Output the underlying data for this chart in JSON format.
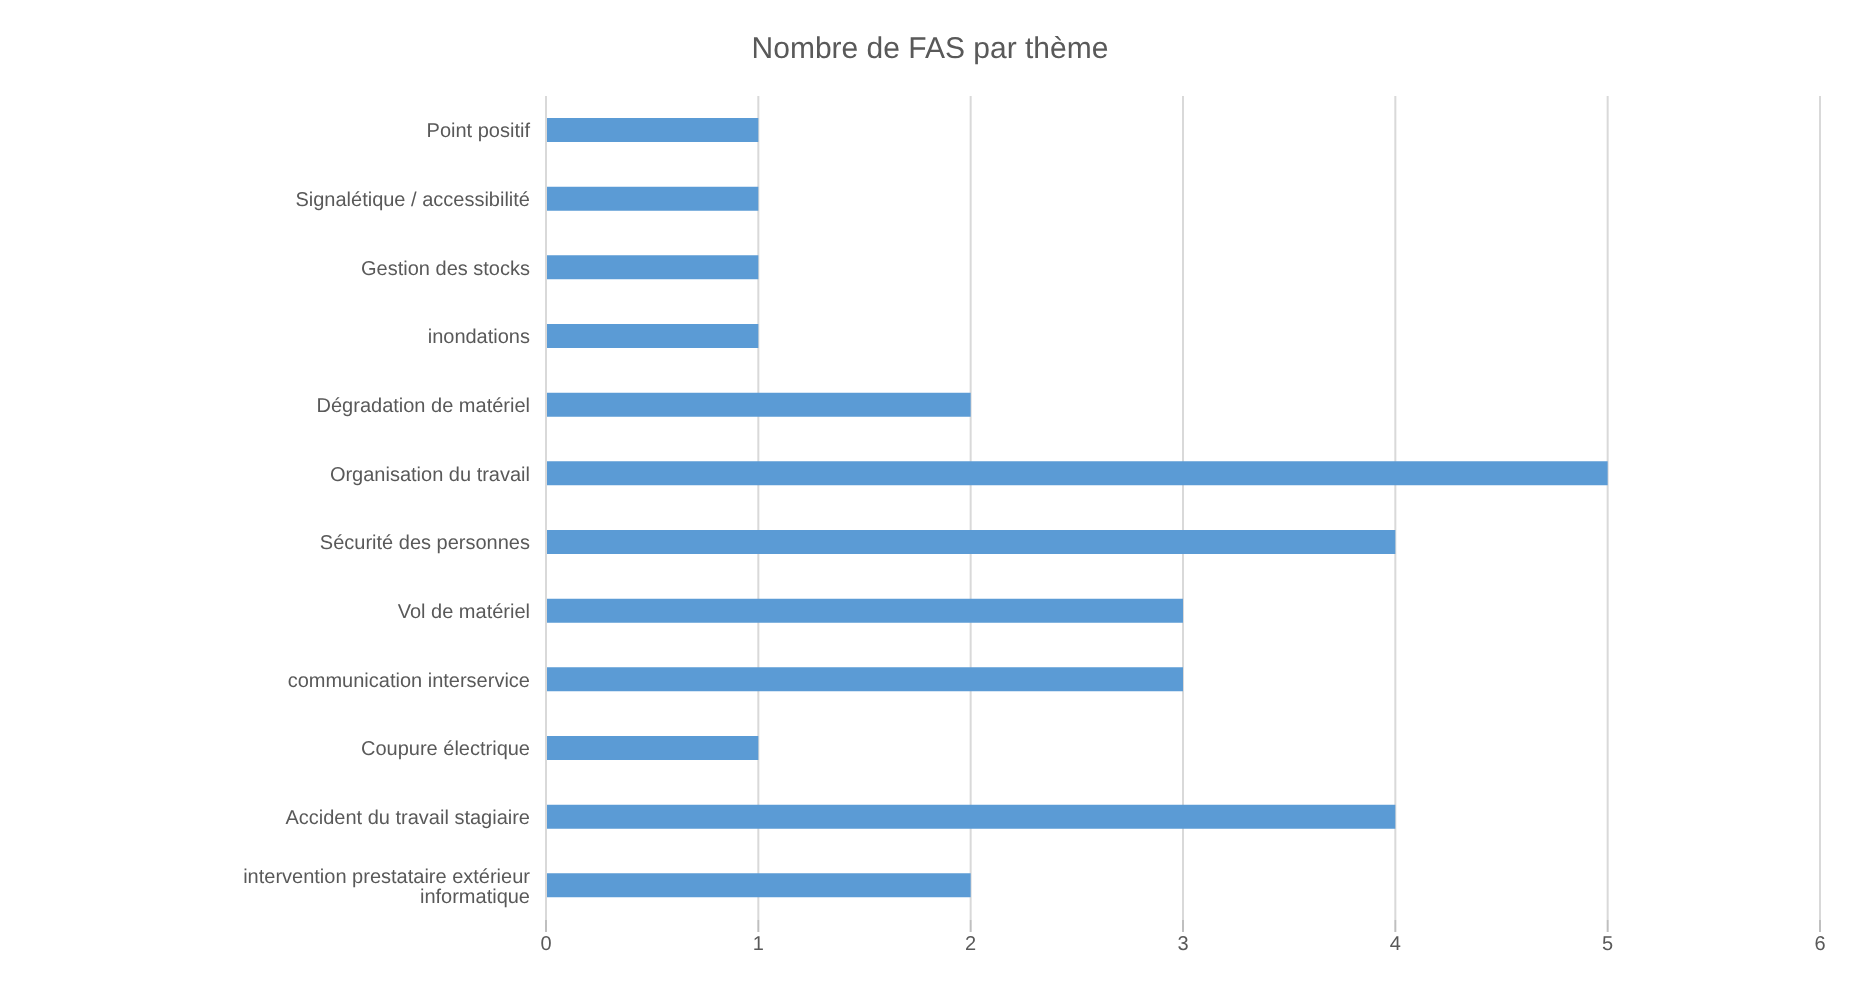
{
  "chart_data": {
    "type": "bar",
    "orientation": "horizontal",
    "title": "Nombre de FAS par thème",
    "categories": [
      "Point positif",
      "Signalétique / accessibilité",
      "Gestion des stocks",
      "inondations",
      "Dégradation de matériel",
      "Organisation du travail",
      "Sécurité des personnes",
      "Vol de matériel",
      "communication interservice",
      "Coupure électrique",
      "Accident du travail stagiaire",
      "intervention prestataire extérieur informatique"
    ],
    "values": [
      1,
      1,
      1,
      1,
      2,
      5,
      4,
      3,
      3,
      1,
      4,
      2
    ],
    "color": "#5b9bd5",
    "xlim": [
      0,
      6
    ],
    "xticks": [
      0,
      1,
      2,
      3,
      4,
      5,
      6
    ],
    "grid": "x"
  }
}
